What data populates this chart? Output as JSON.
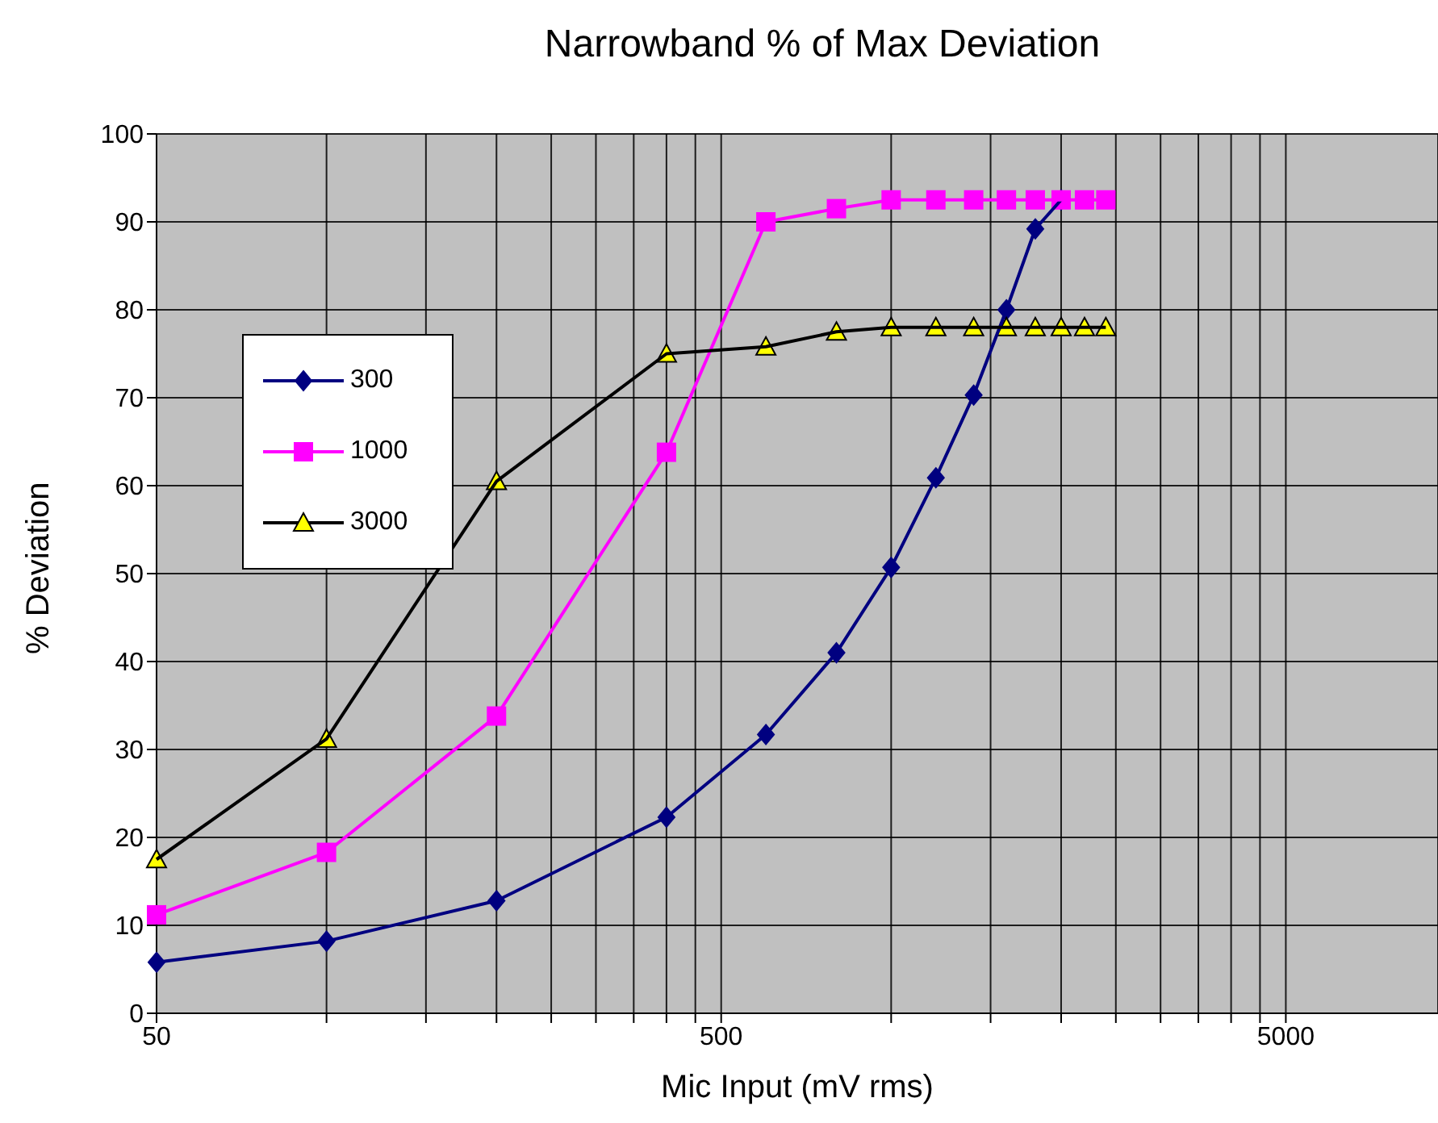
{
  "chart_data": {
    "type": "line",
    "title": "Narrowband % of Max Deviation",
    "xlabel": "Mic Input (mV rms)",
    "ylabel": "% Deviation",
    "log": "x",
    "grid": true,
    "legend": "left",
    "line_style": "solid",
    "x": [
      50,
      100,
      200,
      400,
      600,
      800,
      1000,
      1200,
      1400,
      1600,
      1800,
      2000,
      2200,
      2400
    ],
    "xlim": [
      50,
      9300
    ],
    "xticks": [
      50,
      {
        "value": 100,
        "label": null
      },
      {
        "value": 150,
        "label": null
      },
      {
        "value": 200,
        "label": null
      },
      {
        "value": 250,
        "label": null
      },
      {
        "value": 300,
        "label": null
      },
      {
        "value": 350,
        "label": null
      },
      {
        "value": 400,
        "label": null
      },
      {
        "value": 450,
        "label": null
      },
      500,
      {
        "value": 1000,
        "label": null
      },
      {
        "value": 1500,
        "label": null
      },
      {
        "value": 2000,
        "label": null
      },
      {
        "value": 2500,
        "label": null
      },
      {
        "value": 3000,
        "label": null
      },
      {
        "value": 3500,
        "label": null
      },
      {
        "value": 4000,
        "label": null
      },
      {
        "value": 4500,
        "label": null
      },
      5000
    ],
    "ylim": [
      0,
      100
    ],
    "yticks": [
      0,
      10,
      20,
      30,
      40,
      50,
      60,
      70,
      80,
      90,
      100
    ],
    "series": [
      {
        "name": "300",
        "color": "#000080",
        "marker": "diamond",
        "values": [
          5.8,
          8.2,
          12.8,
          22.3,
          31.7,
          41,
          50.7,
          60.9,
          70.3,
          80,
          89.2,
          92.5,
          null,
          null
        ]
      },
      {
        "name": "1000",
        "color": "#ff00ff",
        "marker": "square",
        "values": [
          11.2,
          18.3,
          33.8,
          63.8,
          90,
          91.5,
          92.5,
          92.5,
          92.5,
          92.5,
          92.5,
          92.5,
          92.5,
          92.5
        ]
      },
      {
        "name": "3000",
        "color": "#000000",
        "marker": "triangle",
        "values": [
          17.5,
          31.2,
          60.5,
          75,
          75.8,
          77.5,
          78,
          78,
          78,
          78,
          78,
          78,
          78,
          78
        ]
      }
    ]
  }
}
